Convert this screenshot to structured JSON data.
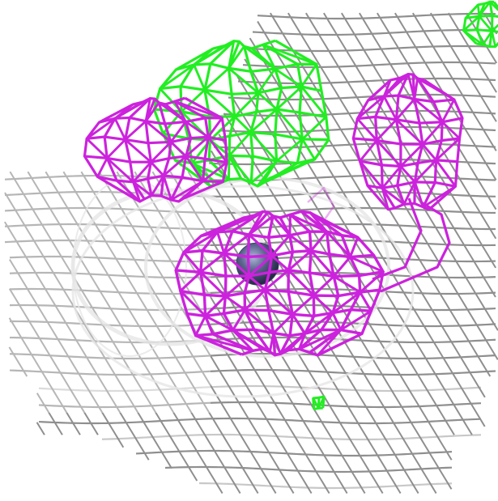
{
  "colors": {
    "background": "#ffffff",
    "grey_mesh": "#8f8f8f",
    "grey_mesh_light": "#c8c8c8",
    "magenta_mesh": "#cc22dd",
    "green_mesh": "#22ee22",
    "atom": "#3b4266"
  },
  "scene": {
    "label_text": ""
  }
}
